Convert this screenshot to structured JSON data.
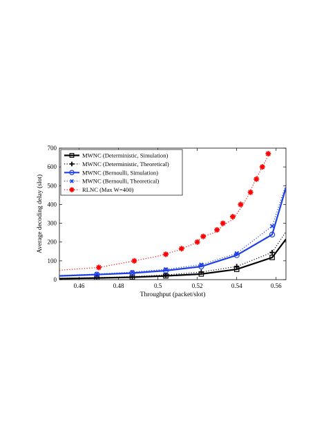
{
  "chart_data": {
    "type": "line",
    "xlabel": "Throughput (packet/slot)",
    "ylabel": "Average decoding delay (slot)",
    "xlim": [
      0.45,
      0.565
    ],
    "ylim": [
      0,
      700
    ],
    "xticks": [
      0.46,
      0.48,
      0.5,
      0.52,
      0.54,
      0.56
    ],
    "yticks": [
      0,
      100,
      200,
      300,
      400,
      500,
      600,
      700
    ],
    "grid": false,
    "legend_position": "top-left",
    "series": [
      {
        "name": "MWNC (Deterministic, Simulation)",
        "color": "#000000",
        "line": "solid",
        "width": 2.2,
        "marker": "square",
        "x": [
          0.45,
          0.469,
          0.487,
          0.504,
          0.522,
          0.54,
          0.558,
          0.565
        ],
        "y": [
          5,
          9,
          13,
          20,
          30,
          55,
          118,
          215
        ],
        "marker_x": [
          0.469,
          0.487,
          0.504,
          0.522,
          0.54,
          0.558
        ],
        "marker_y": [
          9,
          13,
          20,
          30,
          55,
          118
        ]
      },
      {
        "name": "MWNC (Deterministic, Theoretical)",
        "color": "#000000",
        "line": "dotted",
        "width": 1.2,
        "marker": "plus",
        "x": [
          0.45,
          0.469,
          0.487,
          0.504,
          0.522,
          0.54,
          0.558,
          0.565
        ],
        "y": [
          7,
          11,
          16,
          25,
          40,
          70,
          145,
          255
        ],
        "marker_x": [
          0.469,
          0.487,
          0.504,
          0.522,
          0.54,
          0.558
        ],
        "marker_y": [
          11,
          16,
          25,
          40,
          70,
          145
        ]
      },
      {
        "name": "MWNC (Bernoulli, Simulation)",
        "color": "#1f3fe6",
        "line": "solid",
        "width": 2.2,
        "marker": "circle",
        "x": [
          0.45,
          0.469,
          0.487,
          0.504,
          0.522,
          0.54,
          0.558,
          0.565
        ],
        "y": [
          20,
          27,
          35,
          48,
          70,
          130,
          240,
          490
        ],
        "marker_x": [
          0.469,
          0.487,
          0.504,
          0.522,
          0.54,
          0.558
        ],
        "marker_y": [
          27,
          35,
          48,
          70,
          130,
          240
        ]
      },
      {
        "name": "MWNC (Bernoulli, Theoretical)",
        "color": "#1f3fe6",
        "line": "dotted",
        "width": 1.2,
        "marker": "x",
        "x": [
          0.45,
          0.469,
          0.487,
          0.504,
          0.522,
          0.54,
          0.558,
          0.565
        ],
        "y": [
          22,
          30,
          40,
          55,
          80,
          140,
          285,
          505
        ],
        "marker_x": [
          0.469,
          0.487,
          0.504,
          0.522,
          0.54,
          0.558
        ],
        "marker_y": [
          30,
          40,
          55,
          80,
          140,
          285
        ]
      },
      {
        "name": "RLNC (Max W=400)",
        "color": "#ff0000",
        "line": "dotted",
        "width": 1.2,
        "marker": "star",
        "x": [
          0.45,
          0.47,
          0.488,
          0.5,
          0.51,
          0.518,
          0.523,
          0.53,
          0.533,
          0.538,
          0.542,
          0.546,
          0.549,
          0.552,
          0.5555
        ],
        "y": [
          50,
          65,
          100,
          125,
          155,
          190,
          230,
          255,
          290,
          320,
          380,
          450,
          520,
          580,
          650
        ],
        "marker_x": [
          0.47,
          0.488,
          0.504,
          0.512,
          0.52,
          0.523,
          0.53,
          0.533,
          0.538,
          0.542,
          0.547,
          0.55,
          0.553,
          0.556
        ],
        "marker_y": [
          65,
          100,
          135,
          165,
          200,
          230,
          265,
          300,
          335,
          400,
          465,
          535,
          600,
          670
        ]
      }
    ]
  }
}
